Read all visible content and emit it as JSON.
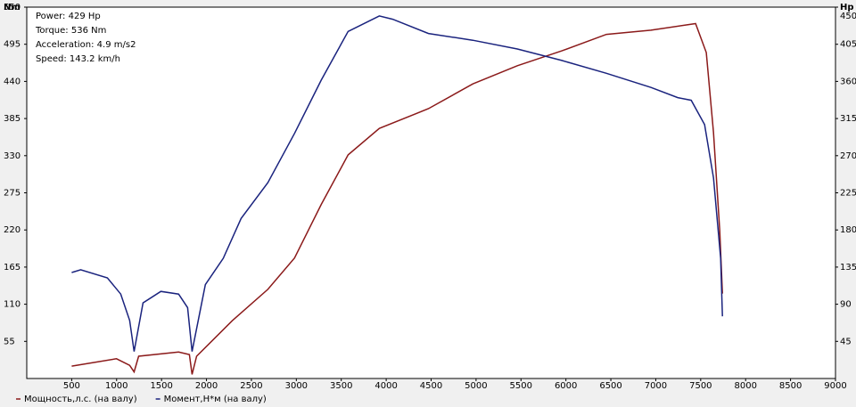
{
  "chart_data": {
    "type": "line",
    "annotations": [
      "Power: 429 Hp",
      "Torque: 536 Nm",
      "Acceleration: 4.9 m/s2",
      "Speed: 143.2 km/h"
    ],
    "ylabel": "Nm",
    "y2label": "Hp",
    "xlim": [
      0,
      9000
    ],
    "xticks": [
      500,
      1000,
      1500,
      2000,
      2500,
      3000,
      3500,
      4000,
      4500,
      5000,
      5500,
      6000,
      6500,
      7000,
      7500,
      8000,
      8500,
      9000
    ],
    "ylim": [
      0,
      550
    ],
    "yticks": [
      55,
      110,
      165,
      220,
      275,
      330,
      385,
      440,
      495,
      550
    ],
    "y2lim": [
      0,
      450
    ],
    "y2ticks": [
      45,
      90,
      135,
      180,
      225,
      270,
      315,
      360,
      405,
      450
    ],
    "series": [
      {
        "name": "Мощность,л.с. (на валу)",
        "color": "#8b1a1a",
        "axis": "y2",
        "x": [
          500,
          998,
          1145,
          1195,
          1245,
          1690,
          1810,
          1840,
          1890,
          2287,
          2683,
          2980,
          3278,
          3576,
          3923,
          4470,
          4964,
          5460,
          5955,
          6451,
          6947,
          7443,
          7562,
          7643,
          7712,
          7742
        ],
        "values": [
          15,
          24,
          16,
          8,
          27,
          32,
          29,
          5,
          27,
          70,
          108,
          146,
          211,
          271,
          303,
          327,
          357,
          379,
          397,
          417,
          422,
          430,
          395,
          298,
          179,
          103
        ]
      },
      {
        "name": "Момент,Н*м (на валу)",
        "color": "#1a237e",
        "axis": "y",
        "x": [
          500,
          600,
          897,
          1046,
          1145,
          1195,
          1294,
          1492,
          1690,
          1790,
          1840,
          1988,
          2187,
          2385,
          2683,
          2980,
          3278,
          3576,
          3923,
          4072,
          4470,
          4964,
          5460,
          5955,
          6451,
          6947,
          7245,
          7394,
          7543,
          7643,
          7722,
          7742
        ],
        "values": [
          157,
          161,
          149,
          125,
          86,
          40,
          112,
          129,
          125,
          105,
          40,
          139,
          178,
          237,
          290,
          363,
          442,
          514,
          537,
          532,
          511,
          501,
          488,
          471,
          452,
          431,
          416,
          412,
          376,
          297,
          178,
          92
        ]
      }
    ]
  }
}
